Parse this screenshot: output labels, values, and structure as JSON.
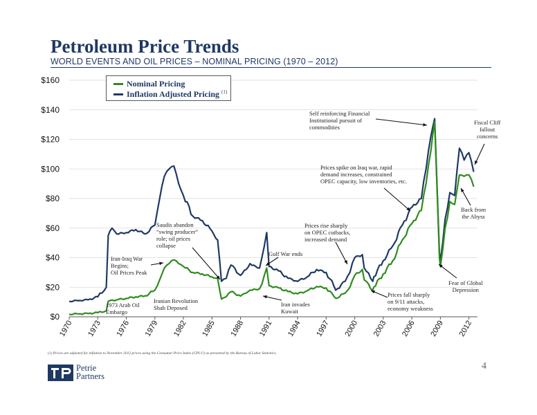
{
  "header": {
    "title": "Petroleum Price Trends",
    "subtitle": "WORLD EVENTS AND OIL PRICES – NOMINAL PRICING (1970 – 2012)"
  },
  "footer": {
    "footnote": "(1)     Prices are adjusted for inflation to November 2012 prices using the Consumer Price Index (CPI-U) as presented by the Bureau of Labor Statistics.",
    "page_number": "4",
    "logo_line1": "Petrie",
    "logo_line2": "Partners"
  },
  "colors": {
    "nominal": "#2e8b1e",
    "inflation": "#1f3864",
    "text": "#1f3864"
  },
  "chart_data": {
    "type": "line",
    "title": "",
    "xlabel": "",
    "ylabel": "",
    "xlim": [
      1970,
      2012.9
    ],
    "ylim": [
      0,
      160
    ],
    "y_ticks": [
      0,
      20,
      40,
      60,
      80,
      100,
      120,
      140,
      160
    ],
    "y_tick_labels": [
      "$0",
      "$20",
      "$40",
      "$60",
      "$80",
      "$100",
      "$120",
      "$140",
      "$160"
    ],
    "x_ticks": [
      1970,
      1973,
      1976,
      1979,
      1982,
      1985,
      1988,
      1991,
      1994,
      1997,
      2000,
      2003,
      2006,
      2009,
      2012
    ],
    "x_tick_labels": [
      "1970",
      "1973",
      "1976",
      "1979",
      "1982",
      "1985",
      "1988",
      "1991",
      "1994",
      "1997",
      "2000",
      "2003",
      "2006",
      "2009",
      "2012"
    ],
    "legend_position": "top-left",
    "series": [
      {
        "name": "Nominal Pricing",
        "legend_note": "",
        "color": "#2e8b1e",
        "points": [
          [
            1970,
            1.8
          ],
          [
            1971,
            2.0
          ],
          [
            1972,
            2.2
          ],
          [
            1973,
            2.8
          ],
          [
            1973.9,
            4.0
          ],
          [
            1974.1,
            10.5
          ],
          [
            1975,
            11.5
          ],
          [
            1976,
            12.5
          ],
          [
            1977,
            13.5
          ],
          [
            1978,
            14.2
          ],
          [
            1979,
            18
          ],
          [
            1979.5,
            25
          ],
          [
            1980,
            33
          ],
          [
            1980.5,
            36
          ],
          [
            1981,
            38.5
          ],
          [
            1981.5,
            36
          ],
          [
            1982,
            34
          ],
          [
            1983,
            30
          ],
          [
            1984,
            29
          ],
          [
            1985,
            27
          ],
          [
            1985.6,
            26
          ],
          [
            1986,
            12
          ],
          [
            1986.5,
            13.5
          ],
          [
            1987,
            17
          ],
          [
            1988,
            14
          ],
          [
            1988.6,
            16
          ],
          [
            1989,
            18
          ],
          [
            1989.6,
            18.5
          ],
          [
            1990,
            19
          ],
          [
            1990.75,
            33
          ],
          [
            1991,
            21
          ],
          [
            1992,
            19.5
          ],
          [
            1993,
            17
          ],
          [
            1994,
            15.5
          ],
          [
            1995,
            17.5
          ],
          [
            1996,
            20.5
          ],
          [
            1997,
            19.5
          ],
          [
            1997.8,
            14
          ],
          [
            1998,
            12.5
          ],
          [
            1999,
            16
          ],
          [
            1999.5,
            20
          ],
          [
            2000,
            28
          ],
          [
            2000.8,
            32
          ],
          [
            2001,
            25
          ],
          [
            2001.9,
            18
          ],
          [
            2002,
            20
          ],
          [
            2003,
            29
          ],
          [
            2004,
            38
          ],
          [
            2005,
            52
          ],
          [
            2006,
            63
          ],
          [
            2007,
            72
          ],
          [
            2007.5,
            90
          ],
          [
            2008,
            112
          ],
          [
            2008.4,
            132
          ],
          [
            2008.9,
            40
          ],
          [
            2009,
            34
          ],
          [
            2009.5,
            60
          ],
          [
            2010,
            78
          ],
          [
            2010.5,
            76
          ],
          [
            2011,
            96
          ],
          [
            2011.5,
            95
          ],
          [
            2012,
            96
          ],
          [
            2012.5,
            88
          ]
        ]
      },
      {
        "name": "Inflation Adjusted Pricing",
        "legend_note": "(1)",
        "color": "#1f3864",
        "points": [
          [
            1970,
            10.5
          ],
          [
            1971,
            11
          ],
          [
            1972,
            11.5
          ],
          [
            1973,
            13.5
          ],
          [
            1973.9,
            20
          ],
          [
            1974.1,
            55
          ],
          [
            1974.5,
            60
          ],
          [
            1975,
            56
          ],
          [
            1976,
            57
          ],
          [
            1977,
            59
          ],
          [
            1978,
            56
          ],
          [
            1979,
            62
          ],
          [
            1979.5,
            80
          ],
          [
            1980,
            95
          ],
          [
            1980.5,
            100
          ],
          [
            1981,
            102
          ],
          [
            1981.5,
            90
          ],
          [
            1982,
            82
          ],
          [
            1983,
            68
          ],
          [
            1984,
            65
          ],
          [
            1985,
            58
          ],
          [
            1985.6,
            52
          ],
          [
            1986,
            24
          ],
          [
            1986.5,
            26
          ],
          [
            1987,
            35
          ],
          [
            1988,
            28
          ],
          [
            1988.6,
            32
          ],
          [
            1989,
            36
          ],
          [
            1989.6,
            34
          ],
          [
            1990,
            33
          ],
          [
            1990.75,
            57
          ],
          [
            1991,
            34
          ],
          [
            1992,
            31
          ],
          [
            1993,
            26
          ],
          [
            1994,
            24
          ],
          [
            1995,
            27
          ],
          [
            1996,
            32
          ],
          [
            1997,
            30
          ],
          [
            1997.8,
            21
          ],
          [
            1998,
            18
          ],
          [
            1999,
            24
          ],
          [
            1999.5,
            30
          ],
          [
            2000,
            40
          ],
          [
            2000.8,
            42
          ],
          [
            2001,
            33
          ],
          [
            2001.9,
            24
          ],
          [
            2002,
            27
          ],
          [
            2003,
            38
          ],
          [
            2004,
            48
          ],
          [
            2005,
            62
          ],
          [
            2006,
            74
          ],
          [
            2007,
            80
          ],
          [
            2007.5,
            100
          ],
          [
            2008,
            122
          ],
          [
            2008.4,
            134
          ],
          [
            2008.9,
            43
          ],
          [
            2009,
            38
          ],
          [
            2009.5,
            66
          ],
          [
            2010,
            84
          ],
          [
            2010.5,
            82
          ],
          [
            2011,
            114
          ],
          [
            2011.5,
            106
          ],
          [
            2012,
            111
          ],
          [
            2012.5,
            98
          ]
        ]
      }
    ],
    "annotations": [
      {
        "id": "arab-embargo",
        "text": "1973 Arab Oil\nEmbargo",
        "x": 1973.8,
        "y": 3.5
      },
      {
        "id": "iranian-revolution",
        "text": "Iranian Revolution\nShah Deposed",
        "x": 1979,
        "y": 18
      },
      {
        "id": "iran-iraq-war",
        "text": "Iran-Iraq War\nBegins;\nOil Prices Peak",
        "x": 1980.8,
        "y": 37
      },
      {
        "id": "saudis-abandon",
        "text": "Saudis abandon\n“swing producer”\nrole; oil prices\ncollapse",
        "x": 1985.6,
        "y": 24
      },
      {
        "id": "gulf-war-ends",
        "text": "Gulf War ends",
        "x": 1990.8,
        "y": 34
      },
      {
        "id": "iran-invades-kuwait",
        "text": "Iran invades\nKuwait",
        "x": 1990.3,
        "y": 18
      },
      {
        "id": "opec-cutbacks",
        "text": "Prices rise sharply\non OPEC cutbacks,\nincreased demand",
        "x": 1999.6,
        "y": 37
      },
      {
        "id": "sept-11",
        "text": "Prices fall sharply\non 9/11 attacks,\neconomy weakness",
        "x": 2001.8,
        "y": 18
      },
      {
        "id": "iraq-war",
        "text": "Prices spike on Iraq war, rapid\ndemand increases, constrained\nOPEC capacity, low inventories, etc.",
        "x": 2006,
        "y": 70
      },
      {
        "id": "financial-pursuit",
        "text": "Self reinforcing Financial\nInstitutional pursuit of\ncommodities",
        "x": 2008.3,
        "y": 130
      },
      {
        "id": "fiscal-cliff",
        "text": "Fiscal Cliff\nfallout\nconcerns",
        "x": 2012.5,
        "y": 102
      },
      {
        "id": "back-from-abyss",
        "text": "Back from\nthe Abyss",
        "x": 2011.3,
        "y": 85
      },
      {
        "id": "fear-depression",
        "text": "Fear of Global\nDepression",
        "x": 2009.2,
        "y": 38
      }
    ]
  }
}
